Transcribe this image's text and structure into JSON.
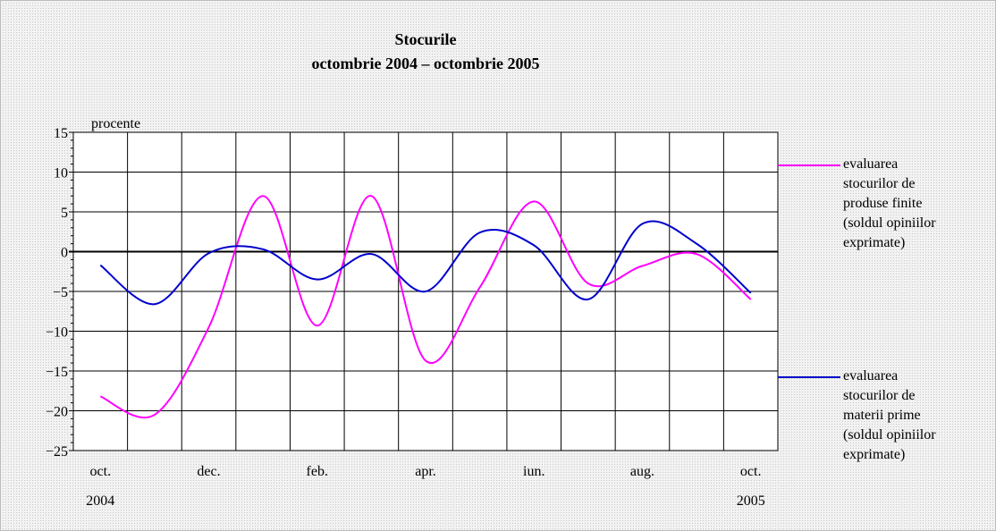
{
  "chart_data": {
    "type": "line",
    "title": "Stocurile",
    "subtitle": "octombrie 2004 – octombrie 2005",
    "y_label": "procente",
    "categories": [
      "oct.",
      null,
      "dec.",
      null,
      "feb.",
      null,
      "apr.",
      null,
      "iun.",
      null,
      "aug.",
      null,
      "oct."
    ],
    "category_sublabels": [
      "2004",
      null,
      null,
      null,
      null,
      null,
      null,
      null,
      null,
      null,
      null,
      null,
      "2005"
    ],
    "series": [
      {
        "name": "evaluarea stocurilor de produse finite (soldul opiniilor exprimate)",
        "color": "#ff00ff",
        "values": [
          -18.2,
          -20.5,
          -9.5,
          7.0,
          -9.3,
          7.0,
          -13.7,
          -4.5,
          6.3,
          -4.0,
          -1.8,
          -0.3,
          -6.0
        ]
      },
      {
        "name": "evaluarea stocurilor de materii prime (soldul opiniilor exprimate)",
        "color": "#0000cc",
        "values": [
          -1.7,
          -6.6,
          -0.2,
          0.3,
          -3.5,
          -0.3,
          -5.0,
          2.4,
          0.8,
          -6.0,
          3.5,
          1.0,
          -5.2
        ]
      }
    ],
    "ylim": [
      -25,
      15
    ],
    "yticks": [
      {
        "value": -25,
        "label": "−25"
      },
      {
        "value": -20,
        "label": "−20"
      },
      {
        "value": -15,
        "label": "−15"
      },
      {
        "value": -10,
        "label": "−10"
      },
      {
        "value": -5,
        "label": "−5"
      },
      0,
      5,
      10,
      15
    ],
    "grid": true,
    "legend": "right"
  }
}
